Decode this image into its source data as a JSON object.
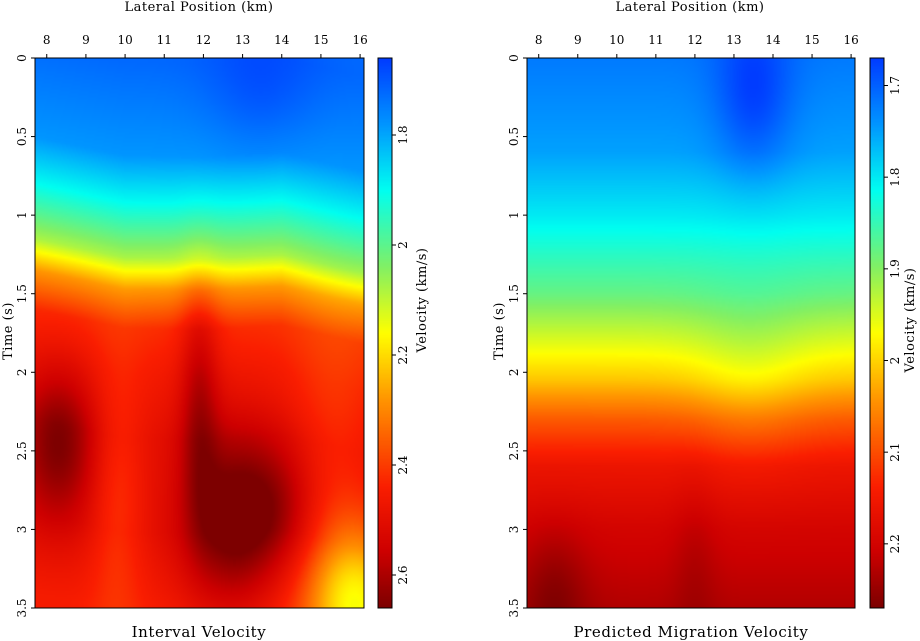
{
  "panels": [
    {
      "caption": "Interval Velocity",
      "chart_data": {
        "type": "heatmap",
        "title": "Interval Velocity",
        "xlabel": "Lateral Position (km)",
        "ylabel": "Time (s)",
        "xlim": [
          7.7,
          16.1
        ],
        "ylim": [
          0,
          3.5
        ],
        "x_ticks": [
          8,
          9,
          10,
          11,
          12,
          13,
          14,
          15,
          16
        ],
        "y_ticks": [
          0,
          0.5,
          1,
          1.5,
          2,
          2.5,
          3,
          3.5
        ],
        "colorbar": {
          "label": "Velocity (km/s)",
          "range": [
            1.66,
            2.66
          ],
          "ticks": [
            1.8,
            2,
            2.2,
            2.4,
            2.6
          ],
          "reversed": false
        },
        "field": {
          "base_profile": [
            [
              0,
              1.72
            ],
            [
              0.6,
              1.78
            ],
            [
              0.9,
              1.9
            ],
            [
              1.1,
              2.0
            ],
            [
              1.25,
              2.08
            ],
            [
              1.45,
              2.28
            ],
            [
              1.7,
              2.42
            ],
            [
              2.0,
              2.46
            ],
            [
              2.4,
              2.5
            ],
            [
              3.0,
              2.5
            ],
            [
              3.5,
              2.45
            ]
          ],
          "interface": {
            "time": 1.28,
            "undulation": [
              [
                7.7,
                -0.1
              ],
              [
                10,
                0.02
              ],
              [
                12,
                0.03
              ],
              [
                14,
                0.0
              ],
              [
                16.1,
                0.12
              ]
            ]
          },
          "anomalies": [
            {
              "x": 8.3,
              "t": 2.45,
              "dv": 0.16,
              "sx": 0.7,
              "st": 0.35
            },
            {
              "x": 11.9,
              "t": 2.15,
              "dv": 0.12,
              "sx": 0.35,
              "st": 0.55
            },
            {
              "x": 12.7,
              "t": 2.95,
              "dv": 0.18,
              "sx": 0.8,
              "st": 0.4
            },
            {
              "x": 13.9,
              "t": 2.85,
              "dv": 0.1,
              "sx": 0.7,
              "st": 0.3
            },
            {
              "x": 9.8,
              "t": 2.8,
              "dv": -0.08,
              "sx": 0.5,
              "st": 0.6
            },
            {
              "x": 15.9,
              "t": 3.45,
              "dv": -0.3,
              "sx": 0.9,
              "st": 0.35
            },
            {
              "x": 13.5,
              "t": 0.2,
              "dv": -0.05,
              "sx": 1.0,
              "st": 0.3
            },
            {
              "x": 15.3,
              "t": 2.4,
              "dv": -0.06,
              "sx": 0.8,
              "st": 0.6
            }
          ]
        }
      }
    },
    {
      "caption": "Predicted Migration Velocity",
      "chart_data": {
        "type": "heatmap",
        "title": "Predicted Migration Velocity",
        "xlabel": "Lateral Position (km)",
        "ylabel": "Time (s)",
        "xlim": [
          7.7,
          16.1
        ],
        "ylim": [
          0,
          3.5
        ],
        "x_ticks": [
          8,
          9,
          10,
          11,
          12,
          13,
          14,
          15,
          16
        ],
        "y_ticks": [
          0,
          0.5,
          1,
          1.5,
          2,
          2.5,
          3,
          3.5
        ],
        "colorbar": {
          "label": "Velocity (km/s)",
          "range": [
            1.67,
            2.27
          ],
          "ticks": [
            1.7,
            1.8,
            1.9,
            2,
            2.1,
            2.2
          ],
          "reversed": false
        },
        "field": {
          "base_profile": [
            [
              0,
              1.72
            ],
            [
              0.6,
              1.75
            ],
            [
              1.0,
              1.8
            ],
            [
              1.5,
              1.88
            ],
            [
              1.8,
              1.95
            ],
            [
              2.05,
              2.01
            ],
            [
              2.3,
              2.09
            ],
            [
              2.6,
              2.16
            ],
            [
              3.0,
              2.2
            ],
            [
              3.5,
              2.23
            ]
          ],
          "interface": {
            "time": 0,
            "undulation": []
          },
          "anomalies": [
            {
              "x": 13.5,
              "t": 0.25,
              "dv": -0.06,
              "sx": 0.7,
              "st": 0.35
            },
            {
              "x": 8.4,
              "t": 3.4,
              "dv": 0.04,
              "sx": 0.6,
              "st": 0.3
            },
            {
              "x": 12.0,
              "t": 3.2,
              "dv": 0.02,
              "sx": 0.4,
              "st": 0.4
            },
            {
              "x": 13.4,
              "t": 2.05,
              "dv": -0.03,
              "sx": 1.0,
              "st": 0.4
            }
          ]
        }
      }
    }
  ]
}
